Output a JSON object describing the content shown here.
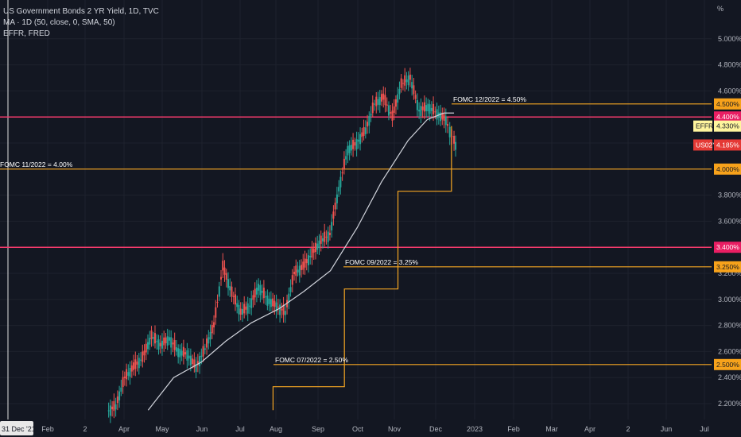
{
  "header": {
    "title": "US Government Bonds 2 YR Yield, 1D, TVC",
    "indicator": "MA · 1D (50, close, 0, SMA, 50)",
    "overlay": "EFFR, FRED"
  },
  "axis_unit": "%",
  "colors": {
    "background": "#131722",
    "up": "#26a69a",
    "down": "#ef5350",
    "ma": "#d1d4dc",
    "effr": "#f5a623",
    "resistance": "#f23a6b",
    "label_orange": "#f7a21b",
    "label_pink": "#e91e63"
  },
  "chart_data": {
    "type": "line",
    "title": "US Government Bonds 2 YR Yield, 1D, TVC",
    "x_ticks": [
      "31 Dec '21",
      "Feb",
      "2",
      "Apr",
      "May",
      "Jun",
      "Jul",
      "Aug",
      "Sep",
      "Oct",
      "Nov",
      "Dec",
      "2023",
      "Feb",
      "Mar",
      "Apr",
      "2",
      "Jun",
      "Jul"
    ],
    "y_ticks": [
      "2.200%",
      "2.400%",
      "2.600%",
      "2.800%",
      "3.000%",
      "3.200%",
      "3.400%",
      "3.600%",
      "3.800%",
      "4.000%",
      "4.200%",
      "4.400%",
      "4.600%",
      "4.800%",
      "5.000%"
    ],
    "ylim": [
      2.1,
      5.35
    ],
    "grid": true,
    "series": [
      {
        "name": "US02Y",
        "kind": "candles",
        "last": "4.185%",
        "closes": [
          {
            "date": "Mar 20",
            "v": 2.18
          },
          {
            "date": "Mar 27",
            "v": 2.4
          },
          {
            "date": "Apr 3",
            "v": 2.48
          },
          {
            "date": "Apr 10",
            "v": 2.55
          },
          {
            "date": "Apr 17",
            "v": 2.72
          },
          {
            "date": "Apr 24",
            "v": 2.65
          },
          {
            "date": "May 1",
            "v": 2.7
          },
          {
            "date": "May 8",
            "v": 2.6
          },
          {
            "date": "May 15",
            "v": 2.58
          },
          {
            "date": "May 22",
            "v": 2.48
          },
          {
            "date": "May 29",
            "v": 2.62
          },
          {
            "date": "Jun 5",
            "v": 2.8
          },
          {
            "date": "Jun 12",
            "v": 3.25
          },
          {
            "date": "Jun 19",
            "v": 3.05
          },
          {
            "date": "Jun 26",
            "v": 2.9
          },
          {
            "date": "Jul 3",
            "v": 2.95
          },
          {
            "date": "Jul 10",
            "v": 3.1
          },
          {
            "date": "Jul 17",
            "v": 3.0
          },
          {
            "date": "Jul 24",
            "v": 2.95
          },
          {
            "date": "Jul 31",
            "v": 2.9
          },
          {
            "date": "Aug 7",
            "v": 3.2
          },
          {
            "date": "Aug 14",
            "v": 3.25
          },
          {
            "date": "Aug 21",
            "v": 3.35
          },
          {
            "date": "Aug 28",
            "v": 3.45
          },
          {
            "date": "Sep 4",
            "v": 3.5
          },
          {
            "date": "Sep 11",
            "v": 3.85
          },
          {
            "date": "Sep 18",
            "v": 4.15
          },
          {
            "date": "Sep 25",
            "v": 4.2
          },
          {
            "date": "Oct 2",
            "v": 4.3
          },
          {
            "date": "Oct 9",
            "v": 4.5
          },
          {
            "date": "Oct 16",
            "v": 4.55
          },
          {
            "date": "Oct 23",
            "v": 4.4
          },
          {
            "date": "Oct 30",
            "v": 4.65
          },
          {
            "date": "Nov 6",
            "v": 4.7
          },
          {
            "date": "Nov 13",
            "v": 4.45
          },
          {
            "date": "Nov 20",
            "v": 4.48
          },
          {
            "date": "Nov 27",
            "v": 4.43
          },
          {
            "date": "Dec 4",
            "v": 4.38
          },
          {
            "date": "Dec 11",
            "v": 4.25
          },
          {
            "date": "Dec 16",
            "v": 4.185
          }
        ]
      },
      {
        "name": "MA (50)",
        "kind": "line",
        "points": [
          {
            "date": "Apr 20",
            "v": 2.15
          },
          {
            "date": "May 10",
            "v": 2.4
          },
          {
            "date": "Jun 1",
            "v": 2.52
          },
          {
            "date": "Jun 20",
            "v": 2.68
          },
          {
            "date": "Jul 10",
            "v": 2.82
          },
          {
            "date": "Aug 1",
            "v": 2.93
          },
          {
            "date": "Aug 20",
            "v": 3.06
          },
          {
            "date": "Sep 10",
            "v": 3.22
          },
          {
            "date": "Oct 1",
            "v": 3.55
          },
          {
            "date": "Oct 20",
            "v": 3.9
          },
          {
            "date": "Nov 10",
            "v": 4.22
          },
          {
            "date": "Nov 25",
            "v": 4.38
          },
          {
            "date": "Dec 8",
            "v": 4.43
          },
          {
            "date": "Dec 16",
            "v": 4.43
          }
        ]
      },
      {
        "name": "EFFR",
        "kind": "step",
        "last": "4.330%",
        "steps": [
          {
            "date": "Jul 27",
            "v": 2.33
          },
          {
            "date": "Sep 21",
            "v": 3.08
          },
          {
            "date": "Nov 2",
            "v": 3.83
          },
          {
            "date": "Dec 14",
            "v": 4.33
          }
        ]
      }
    ],
    "horizontal_lines": [
      {
        "v": 4.5,
        "label": "4.500%",
        "annotation": "FOMC 12/2022 = 4.50%",
        "kind": "fomc"
      },
      {
        "v": 4.4,
        "label": "4.400%",
        "annotation": "",
        "kind": "resistance"
      },
      {
        "v": 4.0,
        "label": "4.000%",
        "annotation": "FOMC 11/2022 = 4.00%",
        "kind": "fomc"
      },
      {
        "v": 3.4,
        "label": "3.400%",
        "annotation": "",
        "kind": "resistance"
      },
      {
        "v": 3.25,
        "label": "3.250%",
        "annotation": "FOMC 09/2022 = 3.25%",
        "kind": "fomc"
      },
      {
        "v": 2.5,
        "label": "2.500%",
        "annotation": "FOMC 07/2022 = 2.50%",
        "kind": "fomc"
      }
    ],
    "price_tags": [
      {
        "name": "EFFR",
        "value": "4.330%",
        "v": 4.33
      },
      {
        "name": "US02Y",
        "value": "4.185%",
        "v": 4.185
      }
    ]
  }
}
